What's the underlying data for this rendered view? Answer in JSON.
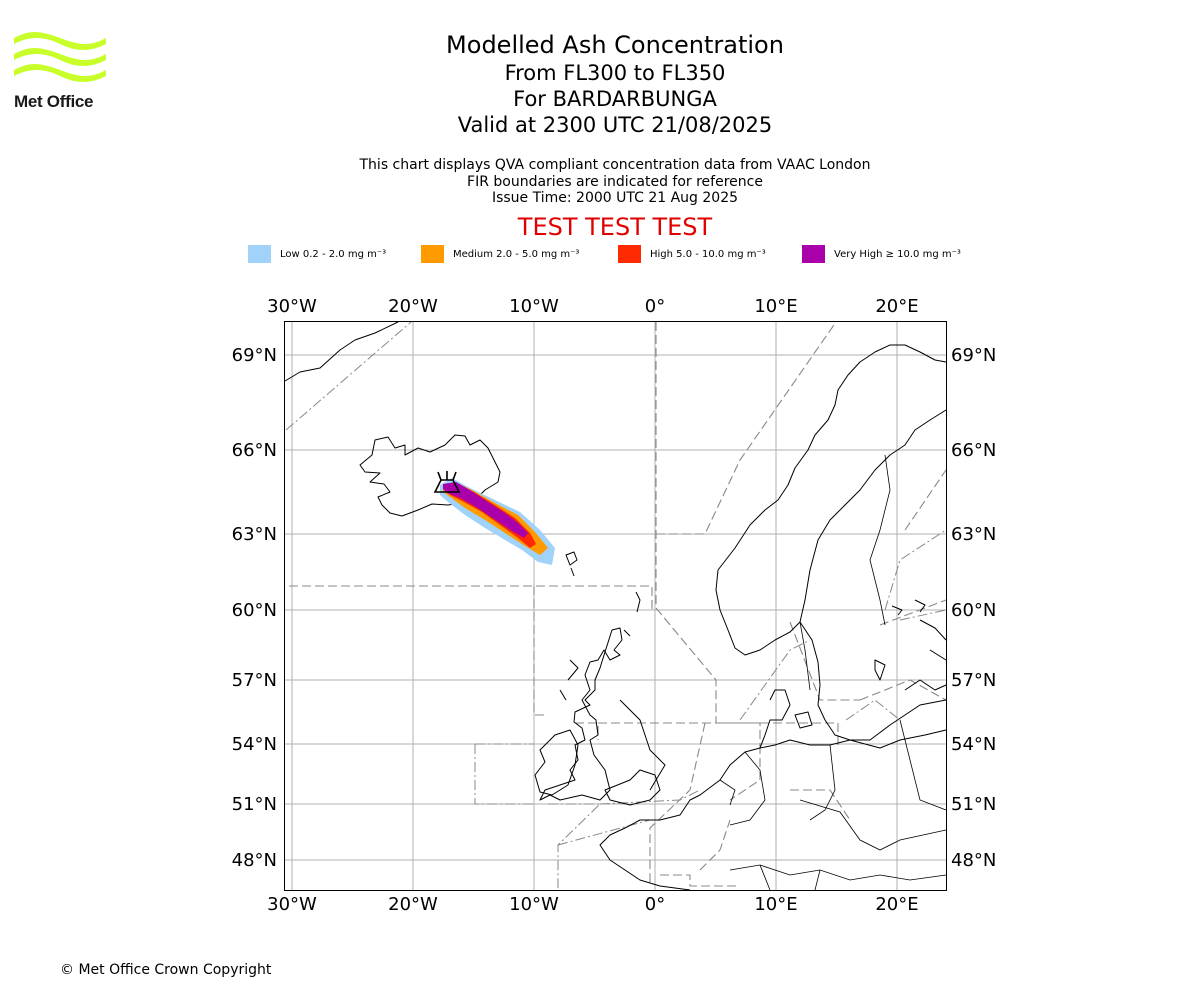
{
  "logo": {
    "name": "Met Office",
    "wave_color": "#c8ff2a"
  },
  "header": {
    "title": "Modelled Ash Concentration",
    "levels": "From FL300 to FL350",
    "volcano": "For BARDARBUNGA",
    "valid": "Valid at 2300 UTC 21/08/2025"
  },
  "subtitle": {
    "line1": "This chart displays QVA compliant concentration data from VAAC London",
    "line2": "FIR boundaries are indicated for reference",
    "line3": "Issue Time: 2000 UTC 21 Aug 2025"
  },
  "test_banner": "TEST TEST TEST",
  "legend": [
    {
      "label": "Low 0.2 - 2.0 mg m⁻³",
      "color": "#a0d2fa"
    },
    {
      "label": "Medium 2.0 - 5.0 mg m⁻³",
      "color": "#ff9a00"
    },
    {
      "label": "High 5.0 - 10.0 mg m⁻³",
      "color": "#ff2a00"
    },
    {
      "label": "Very High ≥ 10.0 mg m⁻³",
      "color": "#aa00aa"
    }
  ],
  "map": {
    "lon_ticks": [
      "30°W",
      "20°W",
      "10°W",
      "0°",
      "10°E",
      "20°E"
    ],
    "lat_ticks": [
      "69°N",
      "66°N",
      "63°N",
      "60°N",
      "57°N",
      "54°N",
      "51°N",
      "48°N"
    ],
    "volcano_symbol": "volcano-icon"
  },
  "footer": {
    "copyright": "© Met Office Crown Copyright"
  }
}
